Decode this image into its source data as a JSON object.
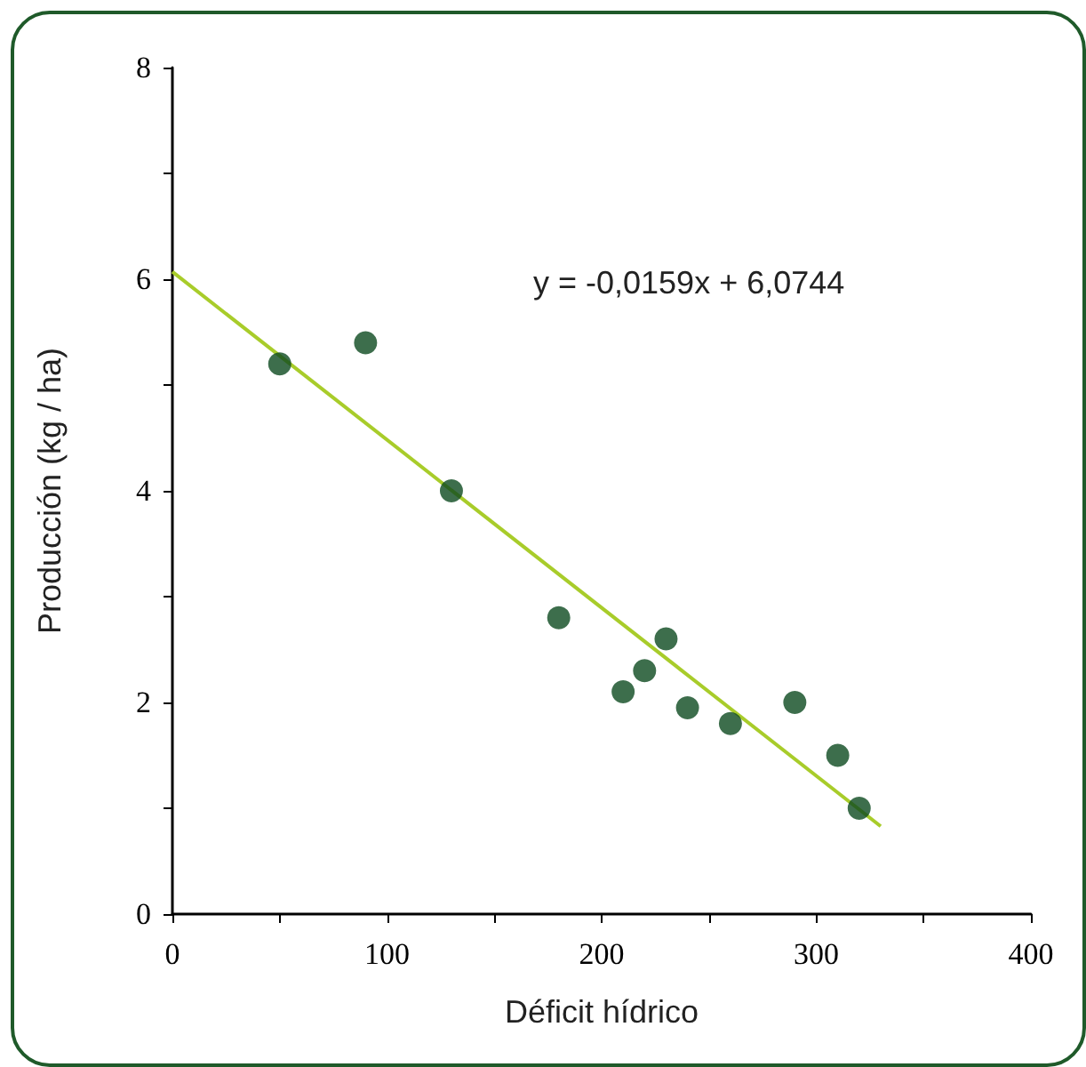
{
  "chart_data": {
    "type": "scatter",
    "xlabel": "Déficit hídrico",
    "ylabel": "Producción (kg / ha)",
    "annotations": [
      "y = -0,0159x + 6,0744"
    ],
    "series": [
      {
        "color": "#0d4a1f",
        "marker": "circle",
        "x": [
          50,
          90,
          130,
          180,
          210,
          220,
          230,
          240,
          260,
          290,
          310,
          320
        ],
        "values": [
          5.2,
          5.4,
          4.0,
          2.8,
          2.1,
          2.3,
          2.6,
          1.95,
          1.8,
          2.0,
          1.5,
          1.0
        ]
      },
      {
        "type": "line",
        "color": "#a8cc2a",
        "marker": "none",
        "line_style": "solid",
        "x": [
          0,
          330
        ],
        "values": [
          6.07,
          0.83
        ]
      }
    ],
    "xlim": [
      0,
      400
    ],
    "xticks": [
      0,
      {
        "value": 50,
        "label": null
      },
      100,
      {
        "value": 150,
        "label": null
      },
      200,
      {
        "value": 250,
        "label": null
      },
      300,
      {
        "value": 350,
        "label": null
      },
      400
    ],
    "ylim": [
      0,
      8
    ],
    "yticks": [
      0,
      {
        "value": 1,
        "label": null
      },
      2,
      {
        "value": 3,
        "label": null
      },
      4,
      {
        "value": 5,
        "label": null
      },
      6,
      {
        "value": 7,
        "label": null
      },
      8
    ],
    "grid": false
  }
}
